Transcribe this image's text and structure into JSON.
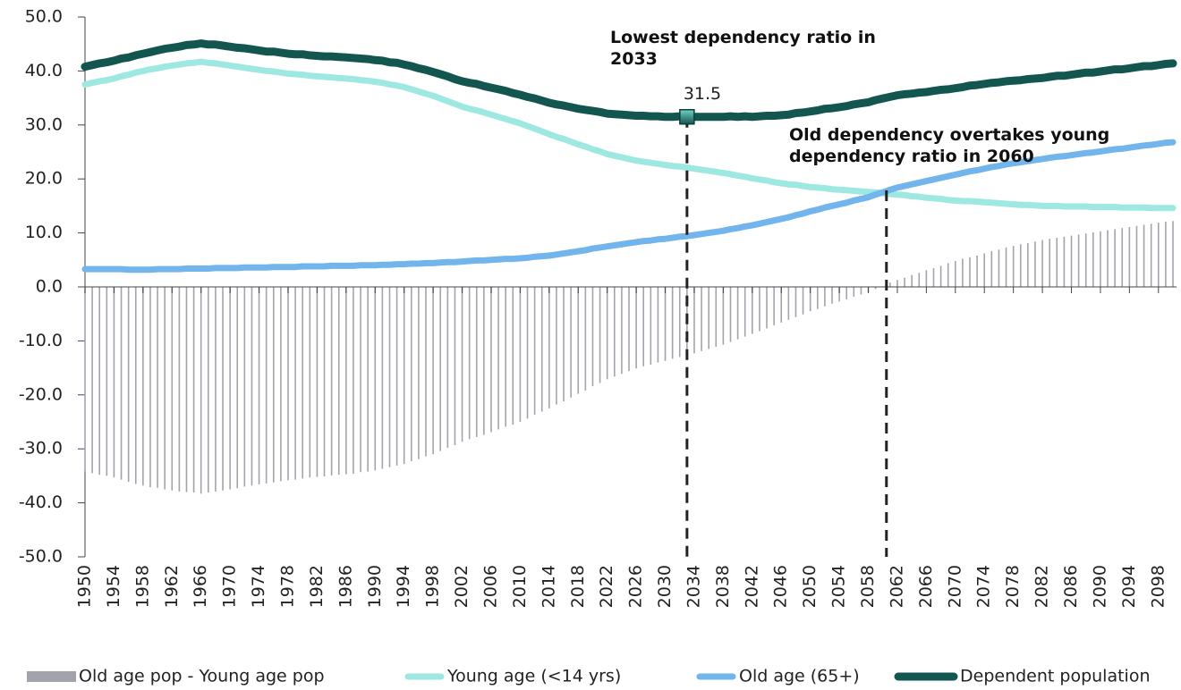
{
  "chart_data": {
    "type": "bar_line",
    "x": [
      1950,
      1951,
      1952,
      1953,
      1954,
      1955,
      1956,
      1957,
      1958,
      1959,
      1960,
      1961,
      1962,
      1963,
      1964,
      1965,
      1966,
      1967,
      1968,
      1969,
      1970,
      1971,
      1972,
      1973,
      1974,
      1975,
      1976,
      1977,
      1978,
      1979,
      1980,
      1981,
      1982,
      1983,
      1984,
      1985,
      1986,
      1987,
      1988,
      1989,
      1990,
      1991,
      1992,
      1993,
      1994,
      1995,
      1996,
      1997,
      1998,
      1999,
      2000,
      2001,
      2002,
      2003,
      2004,
      2005,
      2006,
      2007,
      2008,
      2009,
      2010,
      2011,
      2012,
      2013,
      2014,
      2015,
      2016,
      2017,
      2018,
      2019,
      2020,
      2021,
      2022,
      2023,
      2024,
      2025,
      2026,
      2027,
      2028,
      2029,
      2030,
      2031,
      2032,
      2033,
      2034,
      2035,
      2036,
      2037,
      2038,
      2039,
      2040,
      2041,
      2042,
      2043,
      2044,
      2045,
      2046,
      2047,
      2048,
      2049,
      2050,
      2051,
      2052,
      2053,
      2054,
      2055,
      2056,
      2057,
      2058,
      2059,
      2060,
      2061,
      2062,
      2063,
      2064,
      2065,
      2066,
      2067,
      2068,
      2069,
      2070,
      2071,
      2072,
      2073,
      2074,
      2075,
      2076,
      2077,
      2078,
      2079,
      2080,
      2081,
      2082,
      2083,
      2084,
      2085,
      2086,
      2087,
      2088,
      2089,
      2090,
      2091,
      2092,
      2093,
      2094,
      2095,
      2096,
      2097,
      2098,
      2099,
      2100
    ],
    "xlim": [
      1950,
      2100
    ],
    "xticks": [
      1950,
      1954,
      1958,
      1962,
      1966,
      1970,
      1974,
      1978,
      1982,
      1986,
      1990,
      1994,
      1998,
      2002,
      2006,
      2010,
      2014,
      2018,
      2022,
      2026,
      2030,
      2034,
      2038,
      2042,
      2046,
      2050,
      2054,
      2058,
      2062,
      2066,
      2070,
      2074,
      2078,
      2082,
      2086,
      2090,
      2094,
      2098
    ],
    "ylim": [
      -50,
      50
    ],
    "yticks": [
      {
        "value": -50,
        "label": "-50.0"
      },
      {
        "value": -40,
        "label": "-40.0"
      },
      {
        "value": -30,
        "label": "-30.0"
      },
      {
        "value": -20,
        "label": "-20.0"
      },
      {
        "value": -10,
        "label": "-10.0"
      },
      {
        "value": 0,
        "label": "0.0"
      },
      {
        "value": 10,
        "label": "10.0"
      },
      {
        "value": 20,
        "label": "20.0"
      },
      {
        "value": 30,
        "label": "30.0"
      },
      {
        "value": 40,
        "label": "40.0"
      },
      {
        "value": 50,
        "label": "50.0"
      }
    ],
    "series": [
      {
        "name": "Old age pop - Young age pop",
        "type": "bar",
        "color": "#a3a3ad",
        "values": [
          -34.2,
          -34.5,
          -34.8,
          -35.0,
          -35.3,
          -35.7,
          -36.1,
          -36.5,
          -36.8,
          -37.1,
          -37.2,
          -37.5,
          -37.7,
          -37.9,
          -38.0,
          -38.1,
          -38.3,
          -38.1,
          -37.9,
          -37.7,
          -37.5,
          -37.3,
          -37.0,
          -36.8,
          -36.6,
          -36.4,
          -36.2,
          -36.0,
          -35.8,
          -35.7,
          -35.5,
          -35.3,
          -35.2,
          -35.1,
          -34.9,
          -34.8,
          -34.7,
          -34.6,
          -34.3,
          -34.2,
          -34.0,
          -33.7,
          -33.4,
          -33.1,
          -32.8,
          -32.3,
          -31.9,
          -31.4,
          -31.0,
          -30.4,
          -29.8,
          -29.3,
          -28.7,
          -28.2,
          -27.8,
          -27.4,
          -26.9,
          -26.4,
          -25.9,
          -25.5,
          -25.0,
          -24.4,
          -23.7,
          -23.1,
          -22.5,
          -21.8,
          -21.2,
          -20.5,
          -19.8,
          -19.2,
          -18.4,
          -17.8,
          -17.1,
          -16.6,
          -16.1,
          -15.6,
          -15.1,
          -14.7,
          -14.4,
          -14.0,
          -13.7,
          -13.3,
          -13.0,
          -12.7,
          -12.3,
          -11.9,
          -11.5,
          -11.1,
          -10.7,
          -10.2,
          -9.7,
          -9.2,
          -8.7,
          -8.2,
          -7.7,
          -7.1,
          -6.6,
          -6.1,
          -5.6,
          -5.1,
          -4.5,
          -4.1,
          -3.6,
          -3.1,
          -2.7,
          -2.3,
          -1.8,
          -1.4,
          -1.0,
          -0.4,
          0.1,
          0.8,
          1.3,
          1.7,
          2.2,
          2.6,
          3.1,
          3.5,
          3.9,
          4.4,
          4.8,
          5.2,
          5.5,
          5.8,
          6.2,
          6.6,
          6.9,
          7.3,
          7.6,
          7.9,
          8.1,
          8.4,
          8.7,
          8.9,
          9.1,
          9.3,
          9.5,
          9.7,
          9.9,
          10.1,
          10.3,
          10.5,
          10.7,
          10.9,
          11.1,
          11.3,
          11.5,
          11.7,
          11.9,
          12.1,
          12.2
        ]
      },
      {
        "name": "Young age (<14 yrs)",
        "type": "line",
        "color": "#9ee8e2",
        "values": [
          37.5,
          37.8,
          38.1,
          38.3,
          38.6,
          39.0,
          39.3,
          39.7,
          40.0,
          40.3,
          40.5,
          40.8,
          41.0,
          41.2,
          41.4,
          41.5,
          41.7,
          41.5,
          41.4,
          41.2,
          41.0,
          40.8,
          40.6,
          40.4,
          40.2,
          40.0,
          39.9,
          39.7,
          39.5,
          39.4,
          39.3,
          39.1,
          39.0,
          38.9,
          38.8,
          38.7,
          38.6,
          38.5,
          38.3,
          38.2,
          38.0,
          37.8,
          37.5,
          37.3,
          37.0,
          36.6,
          36.2,
          35.8,
          35.4,
          34.9,
          34.4,
          33.9,
          33.4,
          33.0,
          32.7,
          32.3,
          31.9,
          31.5,
          31.1,
          30.7,
          30.3,
          29.8,
          29.3,
          28.8,
          28.3,
          27.8,
          27.4,
          26.9,
          26.4,
          26.0,
          25.5,
          25.1,
          24.6,
          24.3,
          24.0,
          23.7,
          23.4,
          23.2,
          23.0,
          22.8,
          22.6,
          22.4,
          22.3,
          22.1,
          21.9,
          21.7,
          21.5,
          21.3,
          21.1,
          20.9,
          20.6,
          20.4,
          20.1,
          19.9,
          19.7,
          19.4,
          19.2,
          19.0,
          18.9,
          18.7,
          18.5,
          18.4,
          18.3,
          18.1,
          18.0,
          17.9,
          17.8,
          17.7,
          17.6,
          17.5,
          17.4,
          17.2,
          17.1,
          17.0,
          16.8,
          16.7,
          16.5,
          16.4,
          16.3,
          16.1,
          16.0,
          15.9,
          15.9,
          15.8,
          15.7,
          15.6,
          15.5,
          15.4,
          15.3,
          15.2,
          15.2,
          15.1,
          15.0,
          15.0,
          15.0,
          14.9,
          14.9,
          14.9,
          14.9,
          14.8,
          14.8,
          14.8,
          14.8,
          14.7,
          14.7,
          14.7,
          14.7,
          14.6,
          14.6,
          14.6,
          14.6
        ]
      },
      {
        "name": "Old age (65+)",
        "type": "line",
        "color": "#72b4ec",
        "values": [
          3.3,
          3.3,
          3.3,
          3.3,
          3.3,
          3.3,
          3.2,
          3.2,
          3.2,
          3.2,
          3.3,
          3.3,
          3.3,
          3.3,
          3.4,
          3.4,
          3.4,
          3.4,
          3.5,
          3.5,
          3.5,
          3.5,
          3.6,
          3.6,
          3.6,
          3.6,
          3.7,
          3.7,
          3.7,
          3.7,
          3.8,
          3.8,
          3.8,
          3.8,
          3.9,
          3.9,
          3.9,
          3.9,
          4.0,
          4.0,
          4.0,
          4.1,
          4.1,
          4.2,
          4.2,
          4.3,
          4.3,
          4.4,
          4.4,
          4.5,
          4.6,
          4.6,
          4.7,
          4.8,
          4.9,
          4.9,
          5.0,
          5.1,
          5.2,
          5.2,
          5.3,
          5.4,
          5.6,
          5.7,
          5.8,
          6.0,
          6.2,
          6.4,
          6.6,
          6.8,
          7.1,
          7.3,
          7.5,
          7.7,
          7.9,
          8.1,
          8.3,
          8.5,
          8.6,
          8.8,
          8.9,
          9.1,
          9.3,
          9.4,
          9.6,
          9.8,
          10.0,
          10.2,
          10.4,
          10.7,
          10.9,
          11.2,
          11.4,
          11.7,
          12.0,
          12.3,
          12.6,
          12.9,
          13.3,
          13.6,
          14.0,
          14.3,
          14.7,
          15.0,
          15.3,
          15.6,
          16.0,
          16.3,
          16.6,
          17.1,
          17.5,
          18.0,
          18.4,
          18.7,
          19.0,
          19.3,
          19.6,
          19.9,
          20.2,
          20.5,
          20.8,
          21.1,
          21.4,
          21.6,
          21.9,
          22.2,
          22.4,
          22.7,
          22.9,
          23.1,
          23.3,
          23.5,
          23.7,
          23.9,
          24.1,
          24.2,
          24.4,
          24.6,
          24.8,
          24.9,
          25.1,
          25.3,
          25.5,
          25.6,
          25.8,
          26.0,
          26.2,
          26.3,
          26.5,
          26.7,
          26.8
        ]
      },
      {
        "name": "Dependent population",
        "type": "line",
        "color": "#13564f",
        "values": [
          40.8,
          41.1,
          41.4,
          41.6,
          41.9,
          42.3,
          42.5,
          42.9,
          43.2,
          43.5,
          43.8,
          44.1,
          44.3,
          44.5,
          44.8,
          44.9,
          45.1,
          44.9,
          44.9,
          44.7,
          44.5,
          44.3,
          44.2,
          44.0,
          43.8,
          43.6,
          43.6,
          43.4,
          43.2,
          43.1,
          43.1,
          42.9,
          42.8,
          42.7,
          42.7,
          42.6,
          42.5,
          42.4,
          42.3,
          42.2,
          42.0,
          41.9,
          41.6,
          41.5,
          41.2,
          40.9,
          40.5,
          40.2,
          39.8,
          39.4,
          39.0,
          38.5,
          38.1,
          37.8,
          37.6,
          37.2,
          36.9,
          36.6,
          36.3,
          35.9,
          35.6,
          35.2,
          34.9,
          34.5,
          34.1,
          33.8,
          33.6,
          33.3,
          33.0,
          32.8,
          32.6,
          32.4,
          32.1,
          32.0,
          31.9,
          31.8,
          31.7,
          31.7,
          31.6,
          31.6,
          31.5,
          31.5,
          31.6,
          31.5,
          31.5,
          31.5,
          31.5,
          31.5,
          31.5,
          31.6,
          31.5,
          31.6,
          31.5,
          31.6,
          31.7,
          31.7,
          31.8,
          31.9,
          32.2,
          32.3,
          32.5,
          32.7,
          33.0,
          33.1,
          33.3,
          33.5,
          33.8,
          34.0,
          34.2,
          34.6,
          34.9,
          35.2,
          35.5,
          35.7,
          35.8,
          36.0,
          36.1,
          36.3,
          36.5,
          36.6,
          36.8,
          37.0,
          37.3,
          37.4,
          37.6,
          37.8,
          37.9,
          38.1,
          38.2,
          38.3,
          38.5,
          38.6,
          38.7,
          38.9,
          39.1,
          39.1,
          39.3,
          39.5,
          39.7,
          39.7,
          39.9,
          40.1,
          40.3,
          40.3,
          40.5,
          40.7,
          40.9,
          40.9,
          41.1,
          41.3,
          41.4
        ]
      }
    ],
    "vlines": [
      2033,
      2060.5
    ],
    "annotations": [
      "Lowest dependency ratio in 2033",
      "Old dependency overtakes young dependency ratio in 2060"
    ],
    "legend": "bottom"
  }
}
